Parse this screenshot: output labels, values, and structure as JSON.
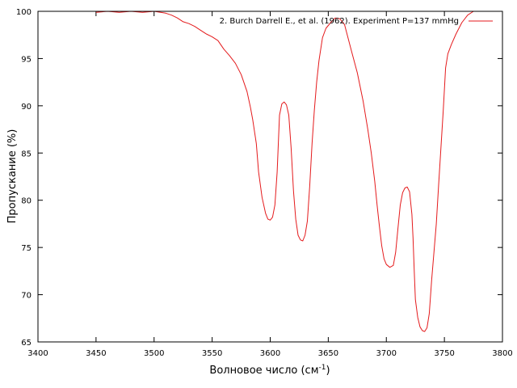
{
  "chart_data": {
    "type": "line",
    "xlabel": "Волновое число (см",
    "xlabel_sup": "-1",
    "xlabel_end": ")",
    "ylabel": "Пропускание (%)",
    "xlim": [
      3400,
      3800
    ],
    "ylim": [
      65,
      100
    ],
    "xticks": [
      3400,
      3450,
      3500,
      3550,
      3600,
      3650,
      3700,
      3750,
      3800
    ],
    "yticks": [
      65,
      70,
      75,
      80,
      85,
      90,
      95,
      100
    ],
    "grid": false,
    "legend_position": "top-right",
    "series": [
      {
        "name": "2. Burch Darrell E., et al. (1962). Experiment P=137 mmHg",
        "color": "#e41a1c",
        "points": [
          [
            3450,
            99.9
          ],
          [
            3460,
            100.0
          ],
          [
            3470,
            99.9
          ],
          [
            3480,
            100.0
          ],
          [
            3490,
            99.9
          ],
          [
            3500,
            100.0
          ],
          [
            3510,
            99.8
          ],
          [
            3515,
            99.6
          ],
          [
            3520,
            99.3
          ],
          [
            3525,
            98.9
          ],
          [
            3530,
            98.7
          ],
          [
            3535,
            98.4
          ],
          [
            3540,
            98.0
          ],
          [
            3545,
            97.6
          ],
          [
            3550,
            97.3
          ],
          [
            3555,
            96.9
          ],
          [
            3560,
            96.0
          ],
          [
            3565,
            95.3
          ],
          [
            3570,
            94.5
          ],
          [
            3575,
            93.3
          ],
          [
            3580,
            91.5
          ],
          [
            3583,
            89.8
          ],
          [
            3585,
            88.5
          ],
          [
            3588,
            86.0
          ],
          [
            3590,
            83.0
          ],
          [
            3593,
            80.3
          ],
          [
            3596,
            78.6
          ],
          [
            3598,
            78.0
          ],
          [
            3600,
            77.9
          ],
          [
            3602,
            78.2
          ],
          [
            3604,
            79.5
          ],
          [
            3606,
            83.0
          ],
          [
            3608,
            89.0
          ],
          [
            3610,
            90.2
          ],
          [
            3612,
            90.4
          ],
          [
            3614,
            90.1
          ],
          [
            3616,
            89.0
          ],
          [
            3618,
            85.5
          ],
          [
            3620,
            81.0
          ],
          [
            3622,
            78.0
          ],
          [
            3624,
            76.3
          ],
          [
            3626,
            75.8
          ],
          [
            3628,
            75.7
          ],
          [
            3630,
            76.3
          ],
          [
            3632,
            77.8
          ],
          [
            3634,
            81.5
          ],
          [
            3636,
            86.0
          ],
          [
            3638,
            89.5
          ],
          [
            3640,
            92.5
          ],
          [
            3642,
            94.8
          ],
          [
            3645,
            97.2
          ],
          [
            3648,
            98.2
          ],
          [
            3652,
            98.8
          ],
          [
            3656,
            99.3
          ],
          [
            3660,
            99.2
          ],
          [
            3664,
            98.6
          ],
          [
            3667,
            97.2
          ],
          [
            3670,
            95.8
          ],
          [
            3675,
            93.5
          ],
          [
            3680,
            90.5
          ],
          [
            3684,
            87.5
          ],
          [
            3687,
            85.0
          ],
          [
            3690,
            82.0
          ],
          [
            3692,
            79.5
          ],
          [
            3694,
            77.3
          ],
          [
            3696,
            75.2
          ],
          [
            3698,
            73.8
          ],
          [
            3700,
            73.2
          ],
          [
            3703,
            72.9
          ],
          [
            3706,
            73.1
          ],
          [
            3708,
            74.5
          ],
          [
            3710,
            77.0
          ],
          [
            3712,
            79.5
          ],
          [
            3714,
            80.8
          ],
          [
            3716,
            81.3
          ],
          [
            3718,
            81.4
          ],
          [
            3720,
            80.9
          ],
          [
            3722,
            78.5
          ],
          [
            3723,
            76.0
          ],
          [
            3724,
            72.5
          ],
          [
            3725,
            69.5
          ],
          [
            3727,
            67.6
          ],
          [
            3729,
            66.6
          ],
          [
            3731,
            66.2
          ],
          [
            3733,
            66.1
          ],
          [
            3735,
            66.5
          ],
          [
            3737,
            68.0
          ],
          [
            3739,
            71.5
          ],
          [
            3741,
            74.5
          ],
          [
            3743,
            77.5
          ],
          [
            3745,
            81.5
          ],
          [
            3747,
            85.5
          ],
          [
            3749,
            89.5
          ],
          [
            3751,
            94.0
          ],
          [
            3753,
            95.5
          ],
          [
            3756,
            96.5
          ],
          [
            3760,
            97.6
          ],
          [
            3765,
            98.8
          ],
          [
            3770,
            99.6
          ],
          [
            3775,
            100.0
          ]
        ]
      }
    ]
  }
}
